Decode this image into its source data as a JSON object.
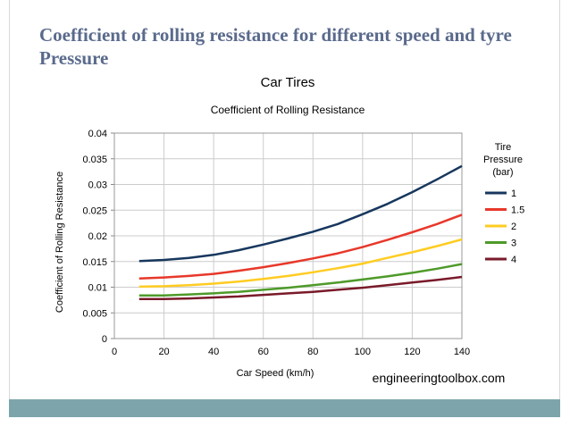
{
  "slide": {
    "title": "Coefficient of rolling resistance for different speed and tyre Pressure"
  },
  "colors": {
    "title": "#5a6a8c",
    "footer_bar": "#7da4ab"
  },
  "chart_data": {
    "type": "line",
    "title": "Car Tires",
    "subtitle": "Coefficient of Rolling Resistance",
    "xlabel": "Car Speed (km/h)",
    "ylabel": "Coefficient of Rolling Resistance",
    "xlim": [
      0,
      140
    ],
    "ylim": [
      0,
      0.04
    ],
    "xticks": [
      0,
      20,
      40,
      60,
      80,
      100,
      120,
      140
    ],
    "yticks": [
      "0",
      "0.005",
      "0.01",
      "0.015",
      "0.02",
      "0.025",
      "0.03",
      "0.035",
      "0.04"
    ],
    "grid": true,
    "legend_title": [
      "Tire",
      "Pressure",
      "(bar)"
    ],
    "legend_position": "right",
    "annotation": "engineeringtoolbox.com",
    "x": [
      10,
      20,
      30,
      40,
      50,
      60,
      70,
      80,
      90,
      100,
      110,
      120,
      130,
      140
    ],
    "series": [
      {
        "name": "1",
        "color": "#17375e",
        "values": [
          0.0151,
          0.0153,
          0.0157,
          0.0163,
          0.0172,
          0.0183,
          0.0195,
          0.0208,
          0.0223,
          0.0242,
          0.0262,
          0.0285,
          0.031,
          0.0336
        ]
      },
      {
        "name": "1.5",
        "color": "#e8382a",
        "values": [
          0.0117,
          0.0119,
          0.0122,
          0.0126,
          0.0132,
          0.0139,
          0.0147,
          0.0156,
          0.0166,
          0.0178,
          0.0192,
          0.0207,
          0.0223,
          0.0241
        ]
      },
      {
        "name": "2",
        "color": "#ffcc22",
        "values": [
          0.0101,
          0.0102,
          0.0104,
          0.0107,
          0.0111,
          0.0116,
          0.0122,
          0.0129,
          0.0137,
          0.0146,
          0.0157,
          0.0168,
          0.018,
          0.0193
        ]
      },
      {
        "name": "3",
        "color": "#4e9a2a",
        "values": [
          0.0084,
          0.0084,
          0.0086,
          0.0088,
          0.0091,
          0.0095,
          0.0099,
          0.0104,
          0.0109,
          0.0115,
          0.0121,
          0.0128,
          0.0136,
          0.0145
        ]
      },
      {
        "name": "4",
        "color": "#7a1a2a",
        "values": [
          0.0077,
          0.0077,
          0.0078,
          0.008,
          0.0082,
          0.0085,
          0.0088,
          0.0091,
          0.0095,
          0.0099,
          0.0104,
          0.0109,
          0.0114,
          0.012
        ]
      }
    ]
  }
}
